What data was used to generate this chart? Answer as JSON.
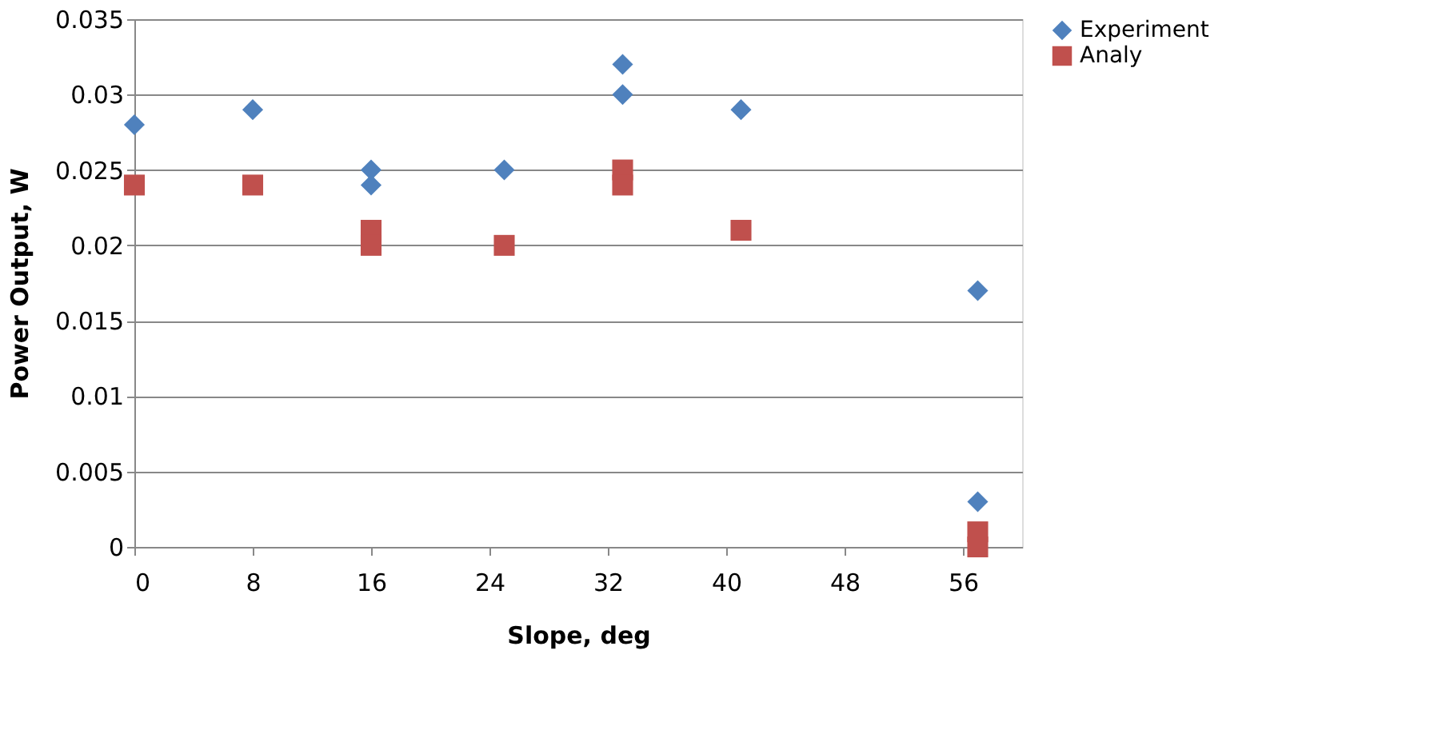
{
  "chart_data": {
    "type": "scatter",
    "xlabel": "Slope, deg",
    "ylabel": "Power Output, W",
    "xlim": [
      0,
      60
    ],
    "xticks": [
      0,
      8,
      16,
      24,
      32,
      40,
      48,
      56
    ],
    "ylim": [
      0,
      0.035
    ],
    "yticks": [
      0,
      0.005,
      0.01,
      0.015,
      0.02,
      0.025,
      0.03,
      0.035
    ],
    "grid": "y",
    "legend": "right",
    "series": [
      {
        "name": "Experiment",
        "color": "#4f81bd",
        "marker": "diamond",
        "x": [
          0,
          8,
          16,
          16,
          25,
          33,
          33,
          41,
          57,
          57
        ],
        "values": [
          0.028,
          0.029,
          0.025,
          0.024,
          0.025,
          0.032,
          0.03,
          0.029,
          0.017,
          0.003
        ]
      },
      {
        "name": "Analy",
        "color": "#c0504d",
        "marker": "square",
        "x": [
          0,
          8,
          16,
          16,
          25,
          33,
          33,
          41,
          57,
          57
        ],
        "values": [
          0.024,
          0.024,
          0.021,
          0.02,
          0.02,
          0.025,
          0.024,
          0.021,
          0.001,
          0.0
        ]
      }
    ]
  }
}
